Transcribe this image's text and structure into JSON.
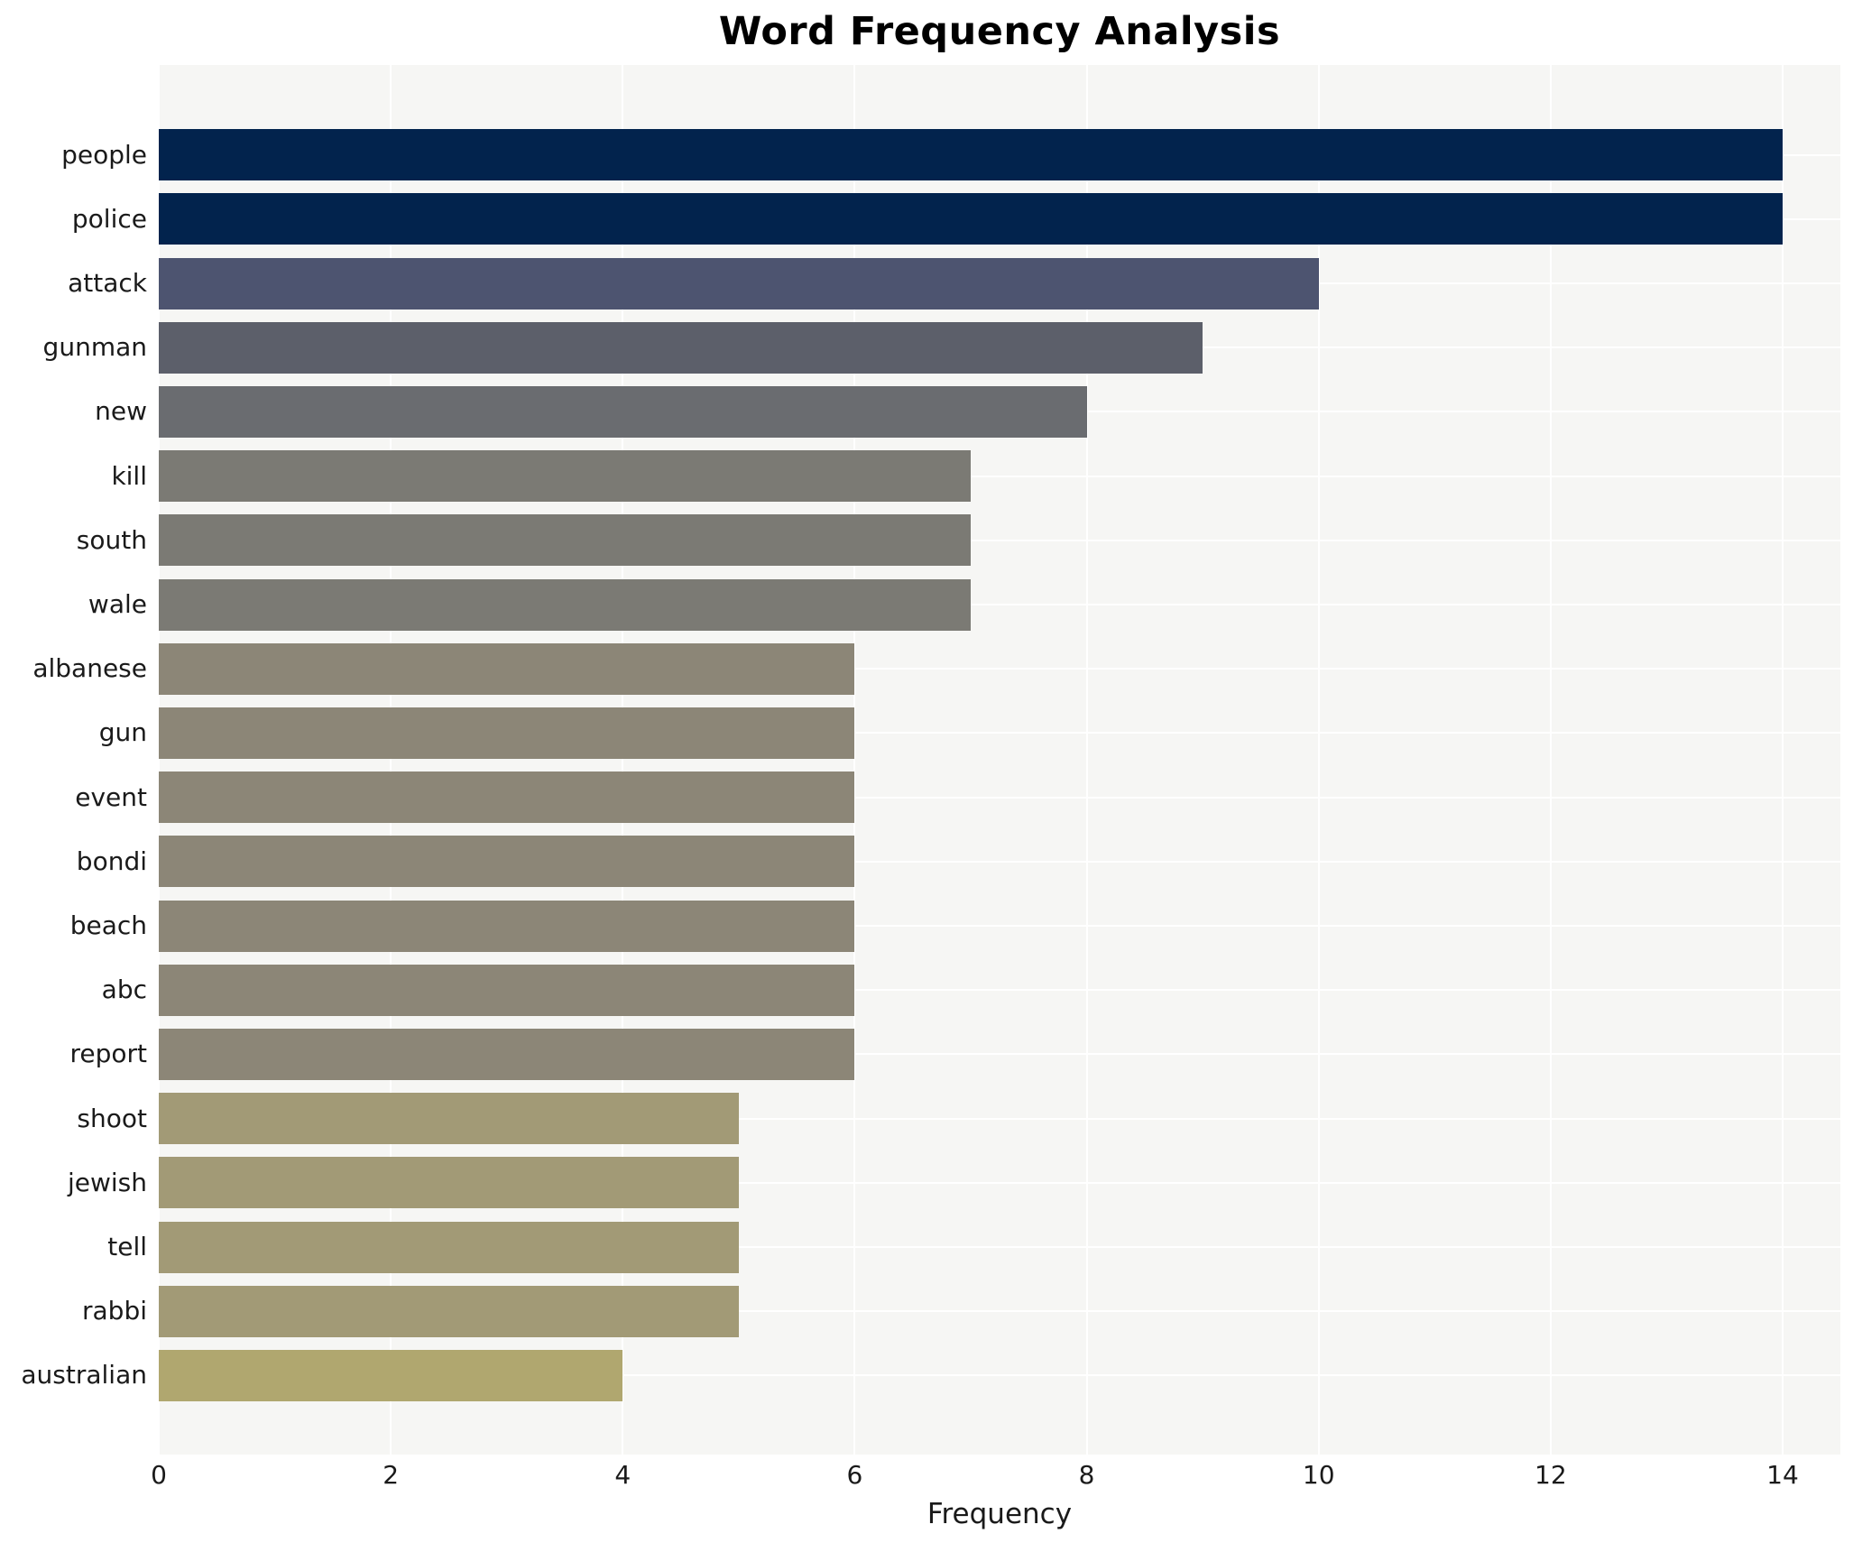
{
  "chart_data": {
    "type": "bar",
    "orientation": "horizontal",
    "title": "Word Frequency Analysis",
    "xlabel": "Frequency",
    "ylabel": "",
    "categories": [
      "people",
      "police",
      "attack",
      "gunman",
      "new",
      "kill",
      "south",
      "wale",
      "albanese",
      "gun",
      "event",
      "bondi",
      "beach",
      "abc",
      "report",
      "shoot",
      "jewish",
      "tell",
      "rabbi",
      "australian"
    ],
    "values": [
      14,
      14,
      10,
      9,
      8,
      7,
      7,
      7,
      6,
      6,
      6,
      6,
      6,
      6,
      6,
      5,
      5,
      5,
      5,
      4
    ],
    "bar_colors": [
      "#02234d",
      "#02234d",
      "#4d5470",
      "#5c5f6a",
      "#6a6c70",
      "#7b7a74",
      "#7b7a74",
      "#7b7a74",
      "#8c8677",
      "#8c8677",
      "#8c8677",
      "#8c8677",
      "#8c8677",
      "#8c8677",
      "#8c8677",
      "#a29a76",
      "#a29a76",
      "#a29a76",
      "#a29a76",
      "#b0a76f"
    ],
    "xlim": [
      0,
      14.5
    ],
    "xticks": [
      0,
      2,
      4,
      6,
      8,
      10,
      12,
      14
    ],
    "grid": true,
    "legend": false,
    "colors": {
      "plot_background": "#f6f6f4",
      "gridline": "#ffffff",
      "text": "#1a1a1a",
      "title": "#000000"
    }
  }
}
